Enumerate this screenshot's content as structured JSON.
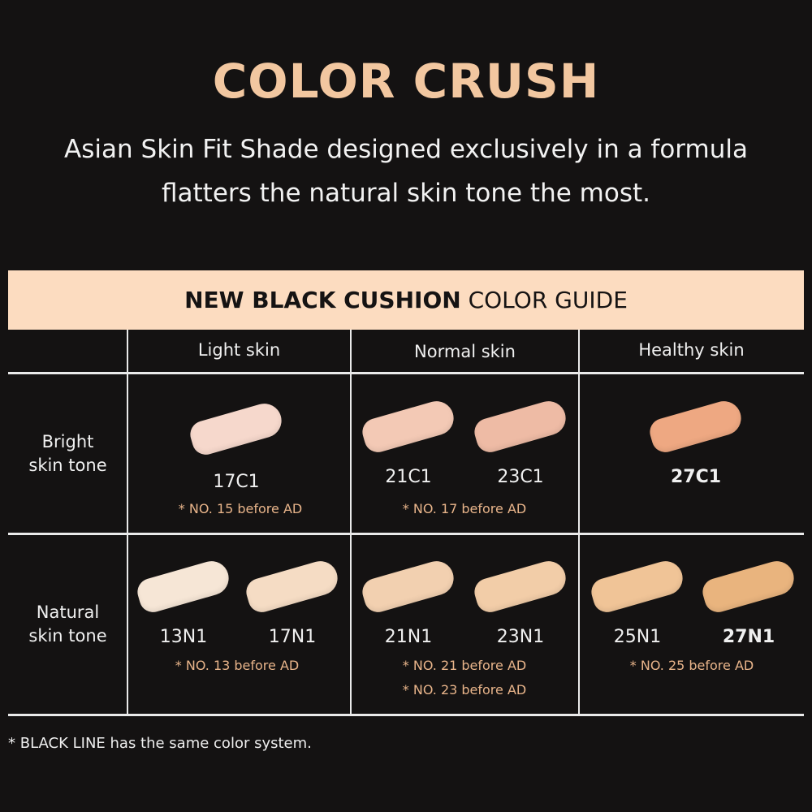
{
  "title": "COLOR CRUSH",
  "subtitle": [
    "Asian Skin Fit Shade designed exclusively in a formula",
    "flatters the natural skin tone the most."
  ],
  "guide": {
    "title_bold": "NEW BLACK CUSHION",
    "title_light": "COLOR GUIDE",
    "band_color": "#fcdcc0"
  },
  "columns": [
    "Light skin",
    "Normal skin",
    "Healthy skin"
  ],
  "rows": [
    {
      "label1": "Bright",
      "label2": "skin tone"
    },
    {
      "label1": "Natural",
      "label2": "skin tone"
    }
  ],
  "shades": [
    {
      "code": "17C1",
      "color": "#f6d8cc",
      "bold": false
    },
    {
      "code": "21C1",
      "color": "#f3c9b5",
      "bold": false
    },
    {
      "code": "23C1",
      "color": "#eebba5",
      "bold": false
    },
    {
      "code": "27C1",
      "color": "#eea882",
      "bold": true
    },
    {
      "code": "13N1",
      "color": "#f6e6d6",
      "bold": false
    },
    {
      "code": "17N1",
      "color": "#f5dcc4",
      "bold": false
    },
    {
      "code": "21N1",
      "color": "#f2d0b0",
      "bold": false
    },
    {
      "code": "23N1",
      "color": "#f2cda8",
      "bold": false
    },
    {
      "code": "25N1",
      "color": "#f0c497",
      "bold": false
    },
    {
      "code": "27N1",
      "color": "#e9b47e",
      "bold": true
    }
  ],
  "notes": [
    "* NO. 15 before AD",
    "* NO. 17 before AD",
    "* NO. 13 before AD",
    "* NO. 21 before AD",
    "* NO. 23 before AD",
    "* NO. 25 before AD"
  ],
  "footer": "* BLACK LINE has the same color system.",
  "accent": "#f2c7a0"
}
